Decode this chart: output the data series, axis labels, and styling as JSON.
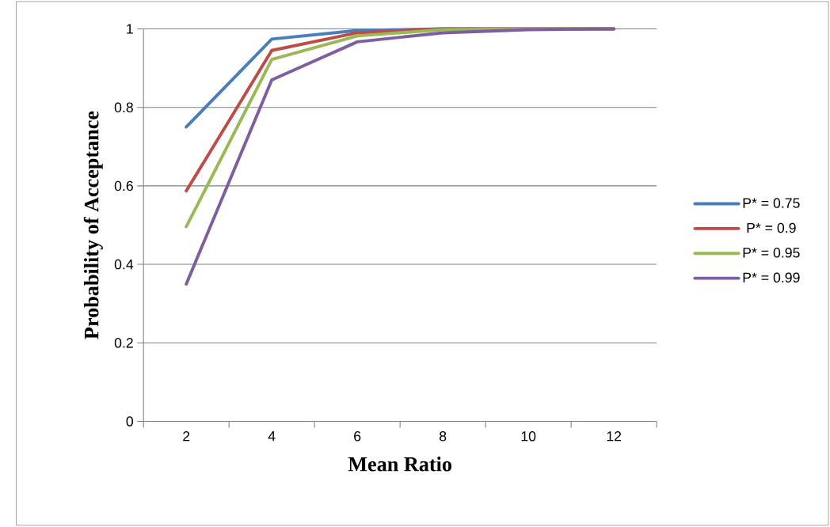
{
  "chart_data": {
    "type": "line",
    "xlabel": "Mean Ratio",
    "ylabel": "Probability of Acceptance",
    "categories": [
      "2",
      "4",
      "6",
      "8",
      "10",
      "12"
    ],
    "series": [
      {
        "name": "P* = 0.75",
        "color": "#4a7ebb",
        "values": [
          0.75,
          0.974,
          0.996,
          1,
          1,
          1
        ]
      },
      {
        "name": "P* = 0.9",
        "color": "#be4b48",
        "values": [
          0.587,
          0.945,
          0.99,
          1,
          1,
          1
        ]
      },
      {
        "name": "P* = 0.95",
        "color": "#98b954",
        "values": [
          0.496,
          0.922,
          0.982,
          0.998,
          1,
          1
        ]
      },
      {
        "name": "P* = 0.99",
        "color": "#7d5fa0",
        "values": [
          0.35,
          0.87,
          0.967,
          0.99,
          0.998,
          1
        ]
      }
    ],
    "ylim": [
      0,
      1
    ],
    "yticks": [
      0,
      0.2,
      0.4,
      0.6,
      0.8,
      1
    ],
    "grid": "y",
    "legend": "right",
    "marker": "none",
    "line_style": "solid"
  }
}
